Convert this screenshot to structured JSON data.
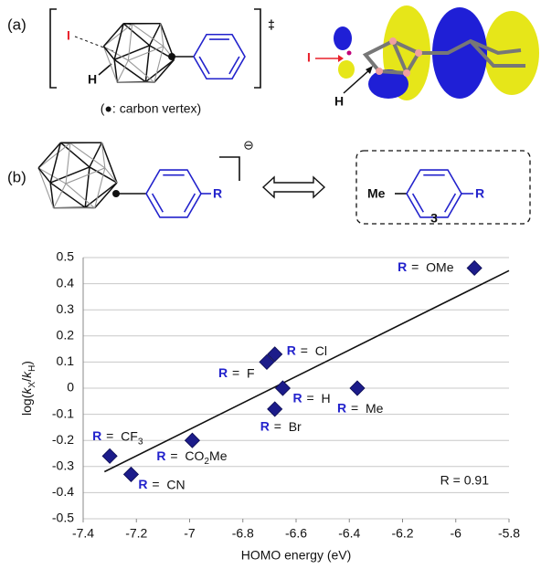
{
  "panel_a": {
    "label": "(a)",
    "iodine": "I",
    "hydrogen": "H",
    "ts_symbol": "‡",
    "caption": "(●: carbon vertex)",
    "orbital_iodine": "I",
    "orbital_hydrogen": "H"
  },
  "panel_b": {
    "label": "(b)",
    "substituent": "R",
    "charge": "⊖",
    "model_methyl": "Me",
    "model_substituent": "R",
    "compound_number": "3"
  },
  "chart_data": {
    "type": "scatter",
    "x": [
      -5.93,
      -6.68,
      -6.71,
      -6.65,
      -6.68,
      -6.37,
      -6.99,
      -7.3,
      -7.22
    ],
    "values": [
      0.46,
      0.13,
      0.1,
      0.0,
      -0.08,
      0.0,
      -0.2,
      -0.26,
      -0.33
    ],
    "point_labels": [
      "OMe",
      "Cl",
      "F",
      "H",
      "Br",
      "Me",
      "CO2Me",
      "CF3",
      "CN"
    ],
    "label_symbol": "R",
    "label_separator": "=",
    "color": "#1c1c8a",
    "xlabel": "HOMO energy (eV)",
    "ylabel": "log(kX/kH)",
    "xlim": [
      -7.4,
      -5.8
    ],
    "xticks": [
      -7.4,
      -7.2,
      -7,
      -6.8,
      -6.6,
      -6.4,
      -6.2,
      -6,
      -5.8
    ],
    "ylim": [
      -0.5,
      0.5
    ],
    "yticks": [
      -0.5,
      -0.4,
      -0.3,
      -0.2,
      -0.1,
      0,
      0.1,
      0.2,
      0.3,
      0.4,
      0.5
    ],
    "grid": true,
    "trendline": {
      "x": [
        -7.32,
        -5.8
      ],
      "y": [
        -0.32,
        0.45
      ]
    },
    "annotation": "R = 0.91"
  }
}
